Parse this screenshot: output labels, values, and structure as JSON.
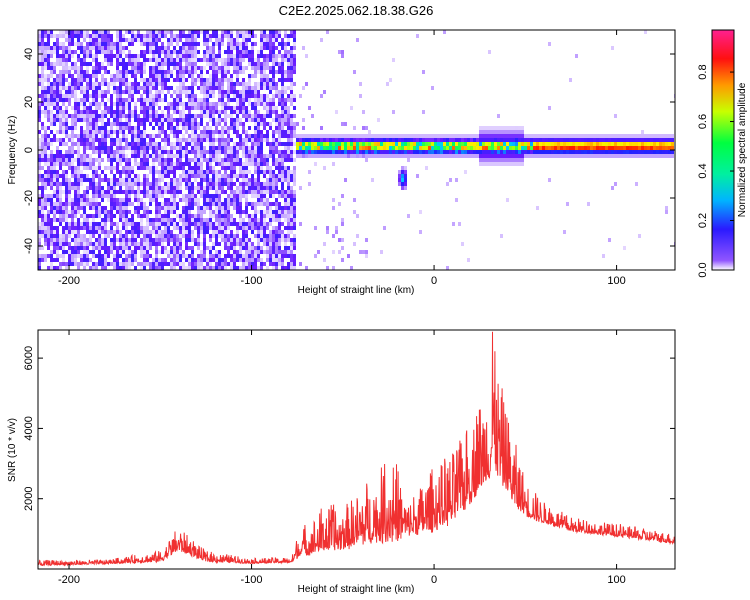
{
  "title": "C2E2.2025.062.18.38.G26",
  "colors": {
    "snr_line": "#f03030",
    "noise": "#6a1bff",
    "axis": "#000000"
  },
  "chart_data": [
    {
      "type": "heatmap",
      "xlabel": "Height of straight line (km)",
      "ylabel": "Frequency (Hz)",
      "xlim": [
        -217,
        132
      ],
      "ylim": [
        -50,
        50
      ],
      "xticks": [
        -200,
        -100,
        0,
        100
      ],
      "xtick_labels": [
        "-200",
        "-100",
        "0",
        "100"
      ],
      "yticks": [
        -40,
        -20,
        0,
        20,
        40
      ],
      "ytick_labels": [
        "-40",
        "-20",
        "0",
        "20",
        "40"
      ],
      "colorbar": {
        "label": "Normalized spectral amplitude",
        "range": [
          0.0,
          0.97
        ],
        "ticks": [
          0.0,
          0.2,
          0.4,
          0.6,
          0.8
        ],
        "tick_labels": [
          "0.0",
          "0.2",
          "0.4",
          "0.6",
          "0.8"
        ],
        "colormap": [
          "#ffffff",
          "#6a1bff",
          "#2222ff",
          "#00c8ff",
          "#00ff60",
          "#b4ff00",
          "#ffee00",
          "#ff7000",
          "#ff0000",
          "#ff1a80"
        ]
      },
      "noise_region_x": [
        -217,
        -75
      ],
      "sparse_region_x": [
        -75,
        -33
      ],
      "signal_band": {
        "x_start": -76,
        "x_end": 132,
        "center_freq": 1.5,
        "half_width": 4,
        "peak_amplitude": 0.95
      },
      "secondary_blob": {
        "x": -17,
        "freq": -12,
        "amplitude": 0.35
      }
    },
    {
      "type": "line",
      "xlabel": "Height of straight line (km)",
      "ylabel": "SNR (10 * v/v)",
      "xlim": [
        -217,
        132
      ],
      "ylim": [
        0,
        6800
      ],
      "xticks": [
        -200,
        -100,
        0,
        100
      ],
      "xtick_labels": [
        "-200",
        "-100",
        "0",
        "100"
      ],
      "yticks": [
        2000,
        4000,
        6000
      ],
      "ytick_labels": [
        "2000",
        "4000",
        "6000"
      ],
      "envelope": {
        "x": [
          -217,
          -180,
          -150,
          -140,
          -125,
          -100,
          -78,
          -74,
          -60,
          -50,
          -35,
          -22,
          -15,
          -5,
          0,
          10,
          20,
          28,
          33,
          38,
          45,
          52,
          60,
          75,
          100,
          132
        ],
        "base": [
          110,
          150,
          230,
          580,
          230,
          170,
          190,
          420,
          620,
          650,
          900,
          1000,
          1050,
          1150,
          1250,
          1500,
          2100,
          2700,
          3150,
          2600,
          1900,
          1550,
          1350,
          1100,
          950,
          750
        ],
        "spread": [
          150,
          120,
          320,
          650,
          300,
          140,
          160,
          750,
          1300,
          1200,
          1800,
          2600,
          900,
          1500,
          1800,
          2000,
          2300,
          2700,
          3200,
          2500,
          1700,
          900,
          600,
          400,
          350,
          280
        ]
      },
      "peak": {
        "x": 32,
        "value": 6750
      },
      "samples": 1600
    }
  ]
}
